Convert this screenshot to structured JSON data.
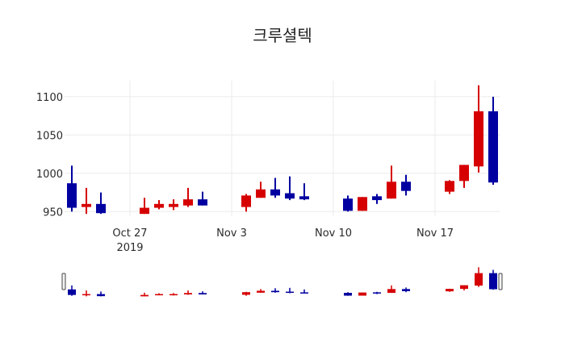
{
  "chart_data": {
    "type": "candlestick",
    "title": "크루셜텍",
    "xlabel": "",
    "ylabel": "",
    "ylim": [
      944,
      1121
    ],
    "yticks": [
      950,
      1000,
      1050,
      1100
    ],
    "xticks": [
      {
        "date": "2019-10-27",
        "label": "Oct 27",
        "sublabel": "2019"
      },
      {
        "date": "2019-11-03",
        "label": "Nov 3",
        "sublabel": ""
      },
      {
        "date": "2019-11-10",
        "label": "Nov 10",
        "sublabel": ""
      },
      {
        "date": "2019-11-17",
        "label": "Nov 17",
        "sublabel": ""
      }
    ],
    "xrange": [
      "2019-10-22T12:00",
      "2019-11-21T12:00"
    ],
    "grid": true,
    "rangeslider": true,
    "increasing_color": "#d60000",
    "decreasing_color": "#0000a0",
    "series": [
      {
        "date": "2019-10-23",
        "open": 987,
        "high": 1010,
        "low": 950,
        "close": 955
      },
      {
        "date": "2019-10-24",
        "open": 956,
        "high": 981,
        "low": 947,
        "close": 960
      },
      {
        "date": "2019-10-25",
        "open": 960,
        "high": 975,
        "low": 947,
        "close": 948
      },
      {
        "date": "2019-10-28",
        "open": 947,
        "high": 968,
        "low": 947,
        "close": 955
      },
      {
        "date": "2019-10-29",
        "open": 955,
        "high": 965,
        "low": 953,
        "close": 960
      },
      {
        "date": "2019-10-30",
        "open": 956,
        "high": 966,
        "low": 952,
        "close": 960
      },
      {
        "date": "2019-10-31",
        "open": 958,
        "high": 981,
        "low": 956,
        "close": 966
      },
      {
        "date": "2019-11-01",
        "open": 966,
        "high": 976,
        "low": 958,
        "close": 958
      },
      {
        "date": "2019-11-04",
        "open": 956,
        "high": 973,
        "low": 950,
        "close": 971
      },
      {
        "date": "2019-11-05",
        "open": 968,
        "high": 989,
        "low": 968,
        "close": 979
      },
      {
        "date": "2019-11-06",
        "open": 979,
        "high": 994,
        "low": 968,
        "close": 971
      },
      {
        "date": "2019-11-07",
        "open": 974,
        "high": 996,
        "low": 965,
        "close": 967
      },
      {
        "date": "2019-11-08",
        "open": 970,
        "high": 987,
        "low": 965,
        "close": 966
      },
      {
        "date": "2019-11-11",
        "open": 967,
        "high": 971,
        "low": 950,
        "close": 951
      },
      {
        "date": "2019-11-12",
        "open": 951,
        "high": 969,
        "low": 951,
        "close": 969
      },
      {
        "date": "2019-11-13",
        "open": 970,
        "high": 973,
        "low": 960,
        "close": 965
      },
      {
        "date": "2019-11-14",
        "open": 967,
        "high": 1010,
        "low": 967,
        "close": 989
      },
      {
        "date": "2019-11-15",
        "open": 989,
        "high": 998,
        "low": 971,
        "close": 977
      },
      {
        "date": "2019-11-18",
        "open": 976,
        "high": 991,
        "low": 973,
        "close": 990
      },
      {
        "date": "2019-11-19",
        "open": 990,
        "high": 1011,
        "low": 981,
        "close": 1011
      },
      {
        "date": "2019-11-20",
        "open": 1009,
        "high": 1115,
        "low": 1001,
        "close": 1081
      },
      {
        "date": "2019-11-21",
        "open": 1081,
        "high": 1100,
        "low": 985,
        "close": 988
      }
    ]
  }
}
